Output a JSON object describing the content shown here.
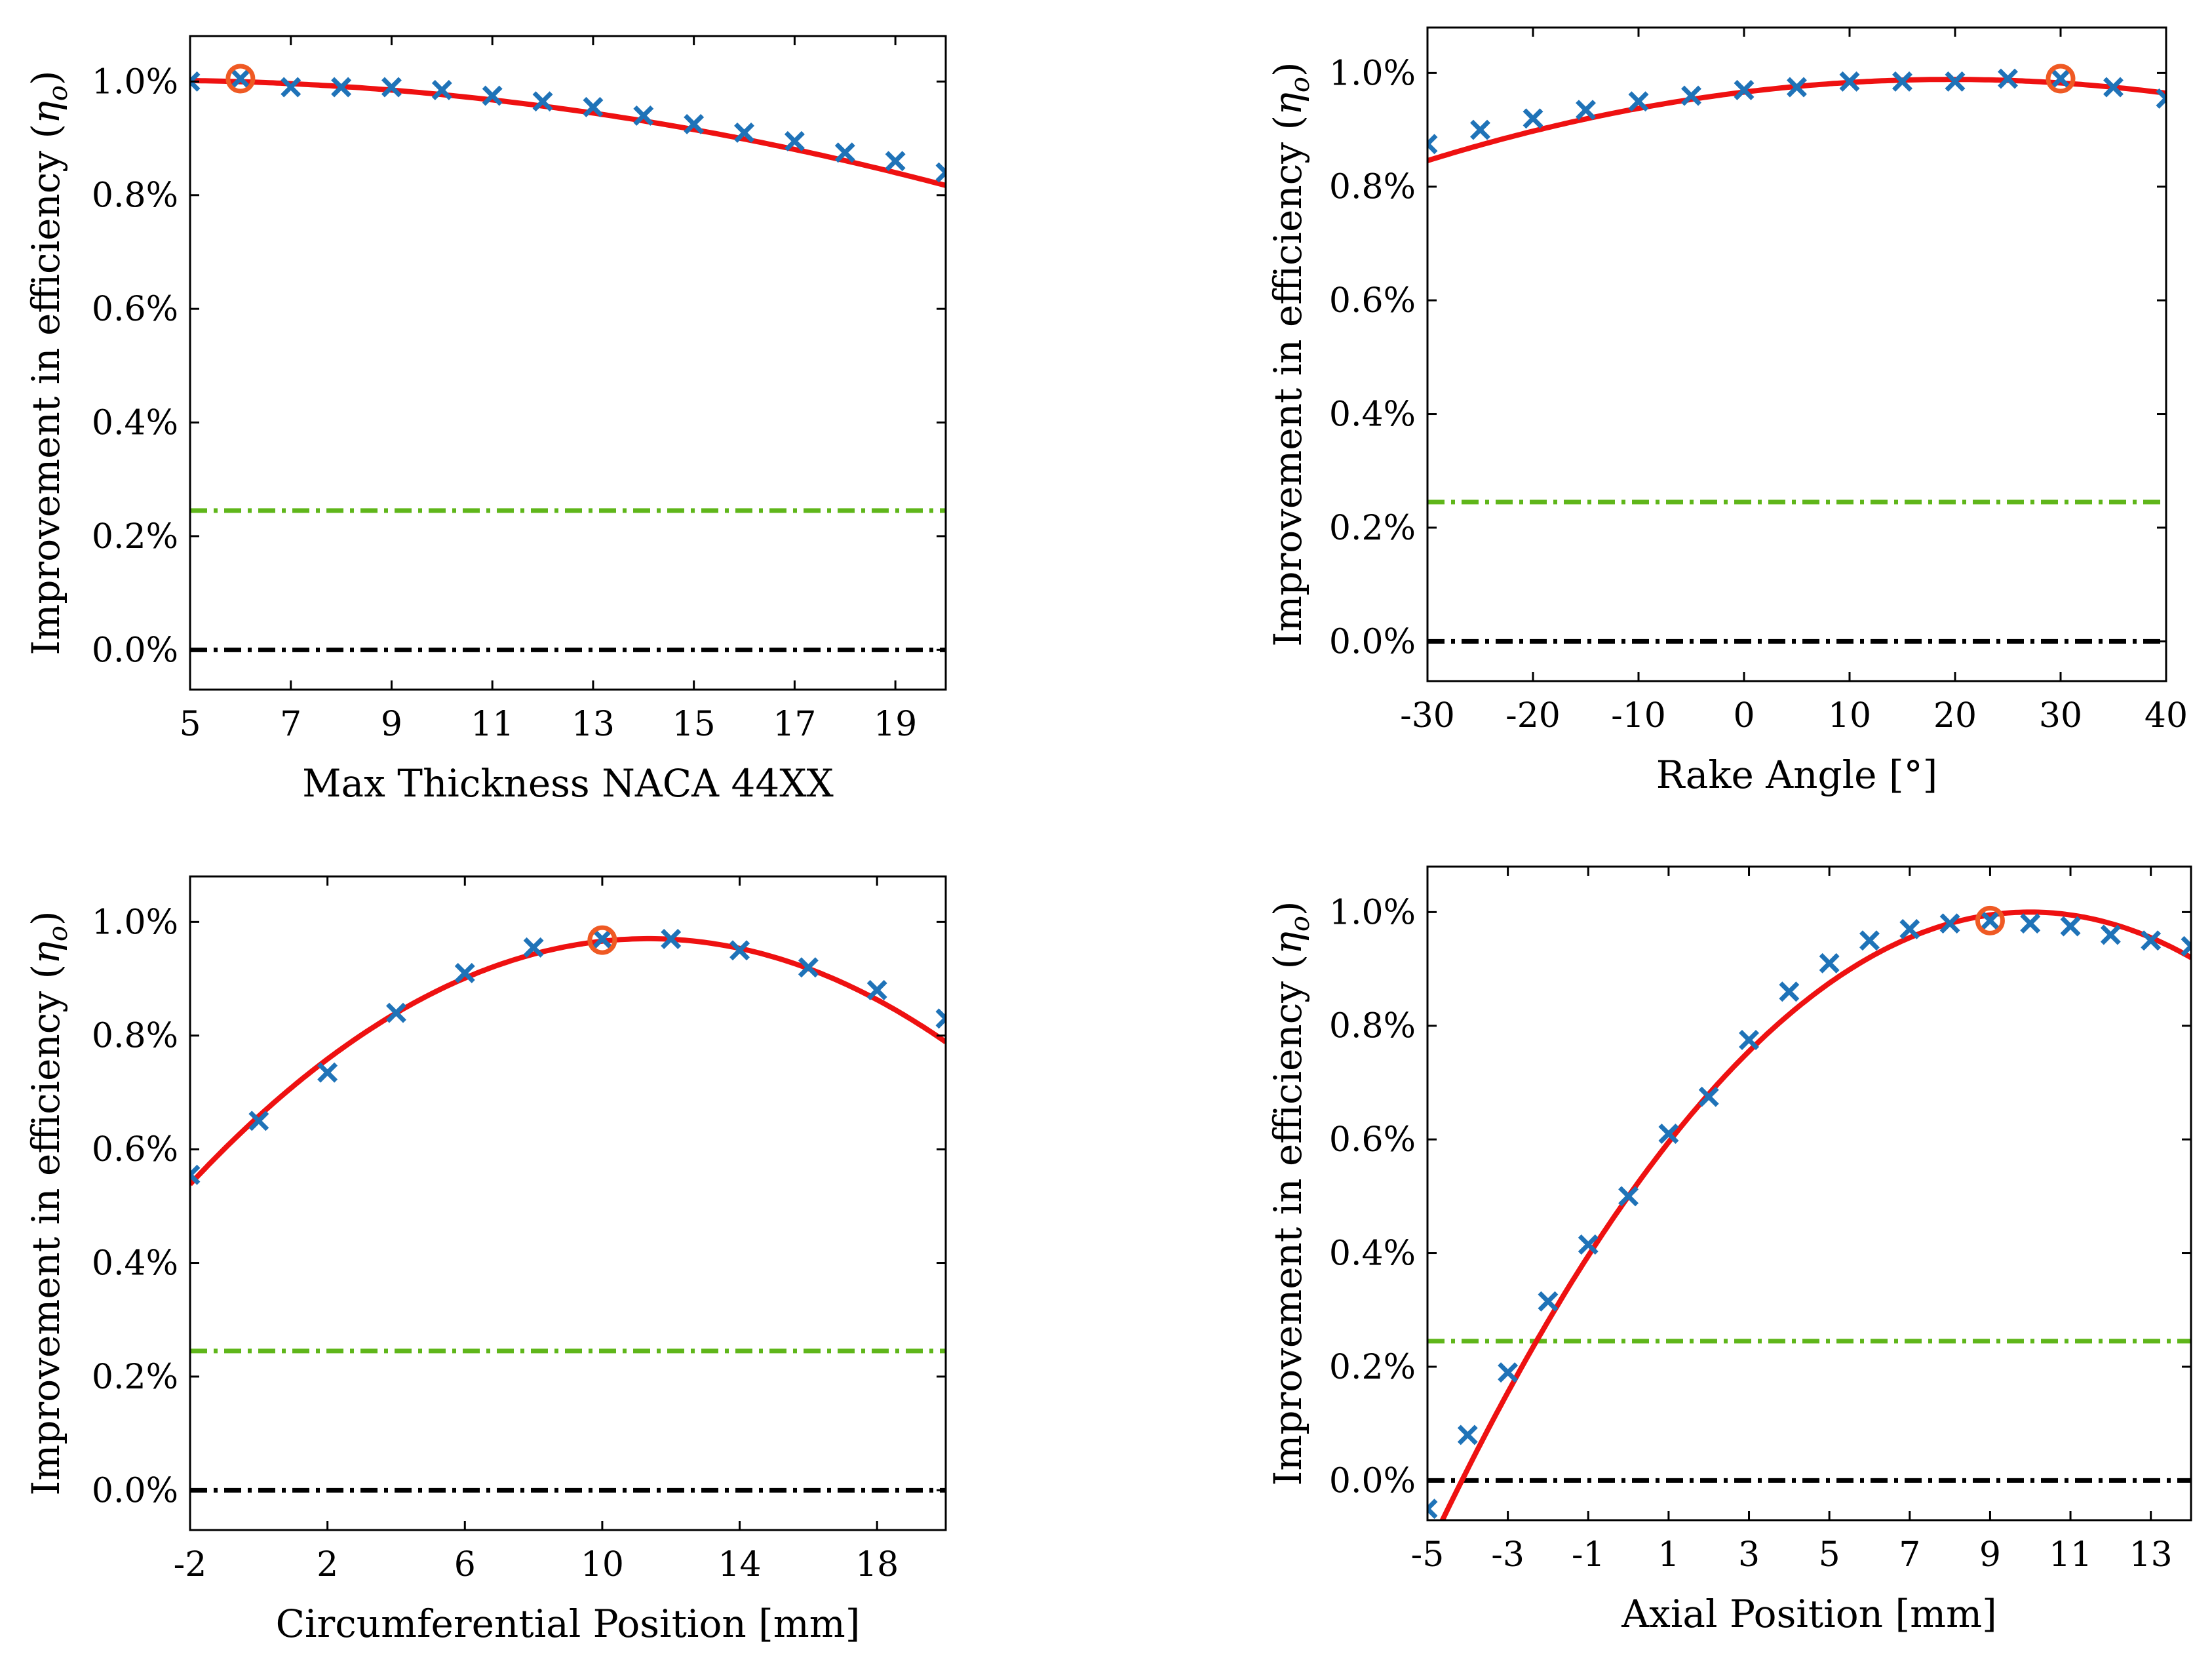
{
  "colors": {
    "marker": "#1f73b8",
    "fit": "#ee1111",
    "optimum": "#ef5a24",
    "threshold": "#5fb61a",
    "baseline": "#000000"
  },
  "chart_data": [
    {
      "type": "scatter",
      "xlabel": "Max Thickness NACA 44XX",
      "ylabel_main": "Improvement in efficiency (",
      "ylabel_sym": "η",
      "ylabel_sub": "o",
      "ylabel_close": ")",
      "xlim": [
        5,
        20
      ],
      "ylim": [
        -0.07,
        1.08
      ],
      "xticks": [
        5,
        7,
        9,
        11,
        13,
        15,
        17,
        19
      ],
      "xtick_labels": [
        "5",
        "7",
        "9",
        "11",
        "13",
        "15",
        "17",
        "19"
      ],
      "yticks": [
        0,
        0.2,
        0.4,
        0.6,
        0.8,
        1.0
      ],
      "ytick_labels": [
        "0.0%",
        "0.2%",
        "0.4%",
        "0.6%",
        "0.8%",
        "1.0%"
      ],
      "threshold_y": 0.245,
      "baseline_y": 0.0,
      "optimum": {
        "x": 6,
        "y": 1.005
      },
      "x": [
        5,
        6,
        7,
        8,
        9,
        10,
        11,
        12,
        13,
        14,
        15,
        16,
        17,
        18,
        19,
        20
      ],
      "y": [
        1.0,
        1.005,
        0.99,
        0.99,
        0.99,
        0.985,
        0.975,
        0.965,
        0.955,
        0.94,
        0.925,
        0.91,
        0.895,
        0.875,
        0.86,
        0.84
      ],
      "fit_coeffs": [
        0.9895,
        0.00612,
        -0.000737
      ]
    },
    {
      "type": "scatter",
      "xlabel": "Rake Angle [°]",
      "ylabel_main": "Improvement in efficiency (",
      "ylabel_sym": "η",
      "ylabel_sub": "o",
      "ylabel_close": ")",
      "xlim": [
        -30,
        40
      ],
      "ylim": [
        -0.07,
        1.08
      ],
      "xticks": [
        -30,
        -20,
        -10,
        0,
        10,
        20,
        30,
        40
      ],
      "xtick_labels": [
        "-30",
        "-20",
        "-10",
        "0",
        "10",
        "20",
        "30",
        "40"
      ],
      "yticks": [
        0,
        0.2,
        0.4,
        0.6,
        0.8,
        1.0
      ],
      "ytick_labels": [
        "0.0%",
        "0.2%",
        "0.4%",
        "0.6%",
        "0.8%",
        "1.0%"
      ],
      "threshold_y": 0.245,
      "baseline_y": 0.0,
      "optimum": {
        "x": 30,
        "y": 0.99
      },
      "x": [
        -30,
        -25,
        -20,
        -15,
        -10,
        -5,
        0,
        5,
        10,
        15,
        20,
        25,
        30,
        35,
        40
      ],
      "y": [
        0.875,
        0.9,
        0.92,
        0.935,
        0.95,
        0.96,
        0.97,
        0.975,
        0.985,
        0.985,
        0.985,
        0.99,
        0.99,
        0.975,
        0.955
      ],
      "fit_coeffs": [
        0.9664,
        0.002277,
        -5.81e-05
      ]
    },
    {
      "type": "scatter",
      "xlabel": "Circumferential Position [mm]",
      "ylabel_main": "Improvement in efficiency (",
      "ylabel_sym": "η",
      "ylabel_sub": "o",
      "ylabel_close": ")",
      "xlim": [
        -2,
        20
      ],
      "ylim": [
        -0.07,
        1.08
      ],
      "xticks": [
        -2,
        2,
        6,
        10,
        14,
        18
      ],
      "xtick_labels": [
        "-2",
        "2",
        "6",
        "10",
        "14",
        "18"
      ],
      "yticks": [
        0,
        0.2,
        0.4,
        0.6,
        0.8,
        1.0
      ],
      "ytick_labels": [
        "0.0%",
        "0.2%",
        "0.4%",
        "0.6%",
        "0.8%",
        "1.0%"
      ],
      "threshold_y": 0.245,
      "baseline_y": 0.0,
      "optimum": {
        "x": 10,
        "y": 0.968
      },
      "x": [
        -2,
        0,
        2,
        4,
        6,
        8,
        10,
        12,
        14,
        16,
        18,
        20
      ],
      "y": [
        0.555,
        0.65,
        0.735,
        0.84,
        0.91,
        0.955,
        0.97,
        0.97,
        0.95,
        0.92,
        0.88,
        0.83
      ],
      "fit_coeffs": [
        0.6582,
        0.05505,
        -0.002426
      ]
    },
    {
      "type": "scatter",
      "xlabel": "Axial Position [mm]",
      "ylabel_main": "Improvement in efficiency (",
      "ylabel_sym": "η",
      "ylabel_sub": "o",
      "ylabel_close": ")",
      "xlim": [
        -5,
        14
      ],
      "ylim": [
        -0.07,
        1.08
      ],
      "xticks": [
        -5,
        -3,
        -1,
        1,
        3,
        5,
        7,
        9,
        11,
        13
      ],
      "xtick_labels": [
        "-5",
        "-3",
        "-1",
        "1",
        "3",
        "5",
        "7",
        "9",
        "11",
        "13"
      ],
      "yticks": [
        0,
        0.2,
        0.4,
        0.6,
        0.8,
        1.0
      ],
      "ytick_labels": [
        "0.0%",
        "0.2%",
        "0.4%",
        "0.6%",
        "0.8%",
        "1.0%"
      ],
      "threshold_y": 0.245,
      "baseline_y": 0.0,
      "optimum": {
        "x": 9,
        "y": 0.985
      },
      "x": [
        -5,
        -4,
        -3,
        -2,
        -1,
        0,
        1,
        2,
        3,
        4,
        5,
        6,
        7,
        8,
        9,
        10,
        11,
        12,
        13,
        14
      ],
      "y": [
        -0.05,
        0.08,
        0.19,
        0.315,
        0.415,
        0.5,
        0.61,
        0.675,
        0.775,
        0.86,
        0.91,
        0.95,
        0.97,
        0.98,
        0.985,
        0.98,
        0.975,
        0.96,
        0.95,
        0.94
      ],
      "fit_coeffs": [
        0.5,
        0.1,
        -0.005
      ]
    }
  ]
}
